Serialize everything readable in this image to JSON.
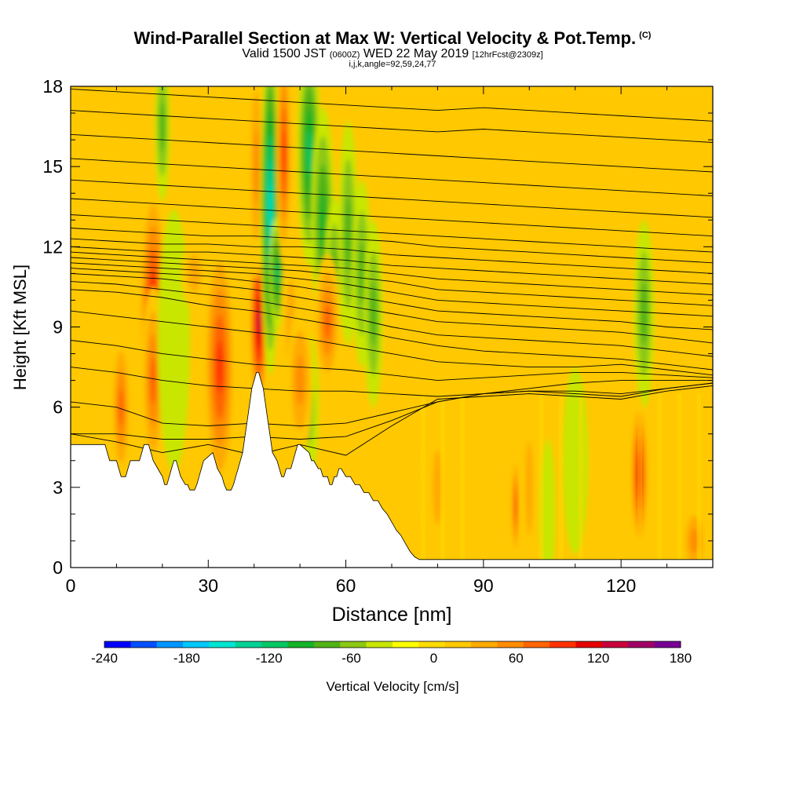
{
  "title": {
    "main": "Wind-Parallel Section at Max W: Vertical Velocity & Pot.Temp.",
    "copyright": "(C)",
    "valid_prefix": "Valid 1500 JST",
    "valid_z": "(0600Z)",
    "valid_date": "WED 22 May 2019",
    "forecast": "[12hrFcst@2309z]",
    "params": "i,j,k,angle=92,59,24,77"
  },
  "colors": {
    "terrain": "#ffffff",
    "contour": "#000000",
    "background_band": "#ffc800"
  },
  "chart_data": {
    "type": "heatmap",
    "xlabel": "Distance [nm]",
    "ylabel": "Height [Kft MSL]",
    "xlim": [
      0,
      140
    ],
    "ylim": [
      0,
      18
    ],
    "xticks": [
      0,
      30,
      60,
      90,
      120
    ],
    "yticks": [
      0,
      3,
      6,
      9,
      12,
      15,
      18
    ],
    "colorbar": {
      "label": "Vertical Velocity [cm/s]",
      "tick_labels": [
        "-240",
        "-180",
        "-120",
        "-60",
        "0",
        "60",
        "120",
        "180"
      ],
      "tick_values": [
        -240,
        -180,
        -120,
        -60,
        0,
        60,
        120,
        180
      ],
      "levels": [
        -240,
        -220,
        -200,
        -180,
        -160,
        -140,
        -120,
        -100,
        -80,
        -60,
        -40,
        -20,
        0,
        20,
        40,
        60,
        80,
        100,
        120,
        140,
        160,
        180
      ],
      "colors": [
        "#0000ff",
        "#0050ff",
        "#0096ff",
        "#00c8ff",
        "#00e6d2",
        "#00d296",
        "#00c864",
        "#14b428",
        "#50b414",
        "#8cc814",
        "#c8e600",
        "#ffff00",
        "#ffdc00",
        "#ffc800",
        "#ffaa00",
        "#ff8c00",
        "#ff6400",
        "#ff3200",
        "#e60000",
        "#c8003c",
        "#a00064",
        "#780096"
      ]
    },
    "terrain_profile": {
      "x": [
        0,
        7.5,
        8,
        8.5,
        10,
        10.5,
        11,
        12,
        12.5,
        13,
        15,
        15.5,
        16,
        17,
        17.5,
        18,
        19,
        20,
        20.5,
        21,
        21.5,
        22,
        22.5,
        23,
        23.5,
        24,
        25,
        25.5,
        26,
        27,
        27.5,
        28,
        28.5,
        29,
        31,
        31.5,
        32,
        33,
        33.5,
        34,
        35,
        35.5,
        36,
        36.5,
        37,
        37.5,
        38,
        38.5,
        39,
        39.5,
        40,
        40.5,
        41,
        42,
        42.5,
        43,
        43.5,
        44,
        45,
        45.5,
        46,
        46.5,
        47,
        48,
        48.5,
        49,
        49.5,
        50,
        52,
        52.5,
        53,
        54,
        54.5,
        55,
        56,
        56.5,
        57,
        57.5,
        58,
        58.5,
        59,
        60,
        61,
        62,
        63,
        64,
        65,
        66,
        67,
        68,
        69,
        70,
        71,
        72,
        73,
        74,
        75,
        76,
        77,
        78,
        79,
        80,
        140
      ],
      "height": [
        4.6,
        4.6,
        4.3,
        4.0,
        4.0,
        3.7,
        3.4,
        3.4,
        3.7,
        4.0,
        4.0,
        4.3,
        4.6,
        4.6,
        4.3,
        4.0,
        3.7,
        3.4,
        3.1,
        3.1,
        3.4,
        3.7,
        4.0,
        4.0,
        3.7,
        3.4,
        3.1,
        3.1,
        2.9,
        2.9,
        3.1,
        3.4,
        3.7,
        4.0,
        4.3,
        4.0,
        3.7,
        3.4,
        3.1,
        2.9,
        2.9,
        3.1,
        3.4,
        3.7,
        4.0,
        4.3,
        4.9,
        5.5,
        6.1,
        6.7,
        7.0,
        7.3,
        7.3,
        6.7,
        6.1,
        5.5,
        4.9,
        4.3,
        4.0,
        3.7,
        3.4,
        3.4,
        3.7,
        3.7,
        4.0,
        4.3,
        4.6,
        4.6,
        4.3,
        4.0,
        4.0,
        3.7,
        3.7,
        3.4,
        3.4,
        3.1,
        3.1,
        3.4,
        3.4,
        3.7,
        3.7,
        3.4,
        3.4,
        3.1,
        3.1,
        2.8,
        2.8,
        2.5,
        2.5,
        2.2,
        2.0,
        1.7,
        1.4,
        1.2,
        0.9,
        0.6,
        0.4,
        0.3,
        0.3,
        0.3,
        0.3,
        0.3,
        0.3
      ]
    },
    "cells": [
      {
        "x": 18,
        "y": 9.5,
        "sx": 2.2,
        "sy": 3.5,
        "v": 130
      },
      {
        "x": 18,
        "y": 7.0,
        "sx": 1.8,
        "sy": 2.5,
        "v": 80
      },
      {
        "x": 20,
        "y": 16.5,
        "sx": 1.2,
        "sy": 2.0,
        "v": -70
      },
      {
        "x": 22.5,
        "y": 8.5,
        "sx": 2.5,
        "sy": 3.5,
        "v": -25
      },
      {
        "x": 32.5,
        "y": 7.5,
        "sx": 2.5,
        "sy": 3.5,
        "v": 110
      },
      {
        "x": 41,
        "y": 9.2,
        "sx": 1.5,
        "sy": 2.5,
        "v": 140
      },
      {
        "x": 40.5,
        "y": 15.0,
        "sx": 1.2,
        "sy": 3.0,
        "v": 70
      },
      {
        "x": 43.5,
        "y": 13.5,
        "sx": 1.5,
        "sy": 4.5,
        "v": -140
      },
      {
        "x": 45,
        "y": 11.0,
        "sx": 1.2,
        "sy": 1.5,
        "v": -100
      },
      {
        "x": 46.5,
        "y": 15.5,
        "sx": 1.2,
        "sy": 3.0,
        "v": 100
      },
      {
        "x": 48,
        "y": 9.0,
        "sx": 1.5,
        "sy": 2.5,
        "v": 50
      },
      {
        "x": 52,
        "y": 15.5,
        "sx": 1.8,
        "sy": 3.0,
        "v": -110
      },
      {
        "x": 55,
        "y": 13.0,
        "sx": 1.8,
        "sy": 3.0,
        "v": -90
      },
      {
        "x": 57.5,
        "y": 11.0,
        "sx": 1.5,
        "sy": 2.0,
        "v": -65
      },
      {
        "x": 52,
        "y": 6.0,
        "sx": 1.5,
        "sy": 2.0,
        "v": -55
      },
      {
        "x": 56,
        "y": 9.2,
        "sx": 2.0,
        "sy": 1.8,
        "v": 90
      },
      {
        "x": 50,
        "y": 7.0,
        "sx": 2.0,
        "sy": 2.0,
        "v": 60
      },
      {
        "x": 60.5,
        "y": 12.5,
        "sx": 1.5,
        "sy": 3.0,
        "v": -75
      },
      {
        "x": 63.5,
        "y": 11.0,
        "sx": 1.5,
        "sy": 2.5,
        "v": -60
      },
      {
        "x": 66,
        "y": 9.5,
        "sx": 1.5,
        "sy": 2.5,
        "v": -70
      },
      {
        "x": 11,
        "y": 6.0,
        "sx": 1.5,
        "sy": 2.0,
        "v": 90
      },
      {
        "x": 7,
        "y": 11.0,
        "sx": 2.5,
        "sy": 1.2,
        "v": 35
      },
      {
        "x": 27,
        "y": 11.0,
        "sx": 2.0,
        "sy": 1.0,
        "v": 40
      },
      {
        "x": 97,
        "y": 2.3,
        "sx": 0.6,
        "sy": 1.4,
        "v": 110
      },
      {
        "x": 124,
        "y": 3.5,
        "sx": 1.4,
        "sy": 2.0,
        "v": 130
      },
      {
        "x": 125,
        "y": 9.5,
        "sx": 1.6,
        "sy": 2.5,
        "v": -70
      },
      {
        "x": 104,
        "y": 2.0,
        "sx": 1.2,
        "sy": 2.0,
        "v": -20
      },
      {
        "x": 100,
        "y": 3.0,
        "sx": 1.2,
        "sy": 2.5,
        "v": 45
      },
      {
        "x": 80,
        "y": 3.0,
        "sx": 1.5,
        "sy": 2.0,
        "v": 40
      },
      {
        "x": 110,
        "y": 4.0,
        "sx": 2.0,
        "sy": 2.5,
        "v": -20
      },
      {
        "x": 88,
        "y": 8.0,
        "sx": 4.0,
        "sy": 3.0,
        "v": 30
      },
      {
        "x": 136,
        "y": 1.0,
        "sx": 2.0,
        "sy": 1.0,
        "v": 60
      }
    ],
    "isentropes": [
      {
        "h": [
          5.0,
          4.7,
          4.3,
          4.6,
          4.2,
          4.6,
          4.2,
          5.3,
          6.3,
          6.4,
          6.5,
          6.4,
          6.3,
          6.6,
          6.8
        ]
      },
      {
        "h": [
          5.0,
          5.0,
          4.8,
          4.8,
          4.9,
          4.8,
          4.9,
          5.5,
          6.2,
          6.5,
          6.6,
          6.6,
          6.5,
          6.7,
          6.9
        ]
      },
      {
        "h": [
          6.2,
          6.0,
          5.4,
          5.3,
          5.4,
          5.3,
          5.4,
          5.8,
          6.2,
          6.5,
          6.6,
          6.5,
          6.4,
          6.7,
          6.9
        ]
      },
      {
        "h": [
          7.5,
          7.3,
          7.0,
          6.8,
          6.7,
          6.6,
          6.6,
          6.5,
          6.4,
          6.5,
          6.7,
          6.9,
          7.0,
          7.0,
          7.0
        ]
      },
      {
        "h": [
          8.5,
          8.3,
          8.0,
          7.8,
          7.6,
          7.5,
          7.4,
          7.2,
          7.0,
          7.1,
          7.2,
          7.3,
          7.3,
          7.2,
          7.1
        ]
      },
      {
        "h": [
          9.6,
          9.4,
          9.2,
          9.0,
          8.8,
          8.6,
          8.3,
          8.0,
          7.7,
          7.6,
          7.5,
          7.5,
          7.6,
          7.4,
          7.2
        ]
      },
      {
        "h": [
          10.4,
          10.3,
          10.1,
          9.8,
          9.6,
          9.3,
          9.0,
          8.6,
          8.3,
          8.1,
          8.0,
          7.9,
          7.8,
          7.6,
          7.4
        ]
      },
      {
        "h": [
          10.7,
          10.6,
          10.4,
          10.2,
          10.0,
          9.7,
          9.4,
          9.0,
          8.7,
          8.6,
          8.5,
          8.4,
          8.3,
          8.1,
          7.9
        ]
      },
      {
        "h": [
          11.0,
          10.9,
          10.8,
          10.6,
          10.4,
          10.1,
          9.8,
          9.5,
          9.2,
          9.1,
          9.0,
          8.9,
          8.8,
          8.6,
          8.4
        ]
      },
      {
        "h": [
          11.2,
          11.1,
          11.0,
          10.9,
          10.7,
          10.5,
          10.2,
          9.9,
          9.6,
          9.5,
          9.4,
          9.3,
          9.2,
          9.0,
          8.9
        ]
      },
      {
        "h": [
          11.4,
          11.3,
          11.2,
          11.1,
          11.0,
          10.8,
          10.6,
          10.3,
          10.0,
          9.9,
          9.8,
          9.7,
          9.6,
          9.5,
          9.4
        ]
      },
      {
        "h": [
          11.6,
          11.5,
          11.4,
          11.3,
          11.2,
          11.1,
          10.9,
          10.7,
          10.4,
          10.3,
          10.2,
          10.1,
          10.0,
          9.9,
          9.8
        ]
      },
      {
        "h": [
          11.8,
          11.7,
          11.6,
          11.5,
          11.4,
          11.3,
          11.2,
          11.0,
          10.8,
          10.7,
          10.6,
          10.5,
          10.4,
          10.3,
          10.2
        ]
      },
      {
        "h": [
          12.0,
          11.9,
          11.8,
          11.8,
          11.7,
          11.6,
          11.5,
          11.3,
          11.2,
          11.1,
          11.0,
          10.9,
          10.8,
          10.7,
          10.6
        ]
      },
      {
        "h": [
          12.3,
          12.2,
          12.1,
          12.1,
          12.0,
          12.0,
          11.9,
          11.7,
          11.6,
          11.5,
          11.4,
          11.3,
          11.2,
          11.1,
          11.0
        ]
      },
      {
        "h": [
          12.7,
          12.6,
          12.5,
          12.4,
          12.4,
          12.3,
          12.3,
          12.2,
          12.0,
          11.9,
          11.8,
          11.7,
          11.6,
          11.5,
          11.4
        ]
      },
      {
        "h": [
          13.2,
          13.1,
          13.0,
          12.9,
          12.8,
          12.7,
          12.6,
          12.5,
          12.4,
          12.3,
          12.2,
          12.1,
          12.0,
          11.9,
          11.8
        ]
      },
      {
        "h": [
          13.8,
          13.7,
          13.6,
          13.5,
          13.4,
          13.3,
          13.2,
          13.1,
          13.0,
          12.9,
          12.8,
          12.7,
          12.6,
          12.5,
          12.4
        ]
      },
      {
        "h": [
          14.5,
          14.4,
          14.3,
          14.2,
          14.1,
          14.0,
          13.9,
          13.8,
          13.7,
          13.6,
          13.5,
          13.4,
          13.3,
          13.2,
          13.1
        ]
      },
      {
        "h": [
          15.3,
          15.2,
          15.1,
          15.0,
          14.9,
          14.8,
          14.7,
          14.6,
          14.5,
          14.4,
          14.3,
          14.2,
          14.1,
          14.0,
          13.9
        ]
      },
      {
        "h": [
          16.2,
          16.1,
          16.0,
          15.9,
          15.8,
          15.7,
          15.6,
          15.5,
          15.4,
          15.3,
          15.2,
          15.1,
          15.0,
          14.9,
          14.8
        ]
      },
      {
        "h": [
          17.1,
          17.0,
          16.9,
          16.8,
          16.7,
          16.6,
          16.5,
          16.4,
          16.3,
          16.4,
          16.3,
          16.2,
          16.1,
          16.0,
          15.9
        ]
      },
      {
        "h": [
          17.9,
          17.8,
          17.7,
          17.6,
          17.5,
          17.4,
          17.3,
          17.2,
          17.1,
          17.2,
          17.1,
          17.0,
          16.9,
          16.8,
          16.7
        ]
      }
    ]
  }
}
